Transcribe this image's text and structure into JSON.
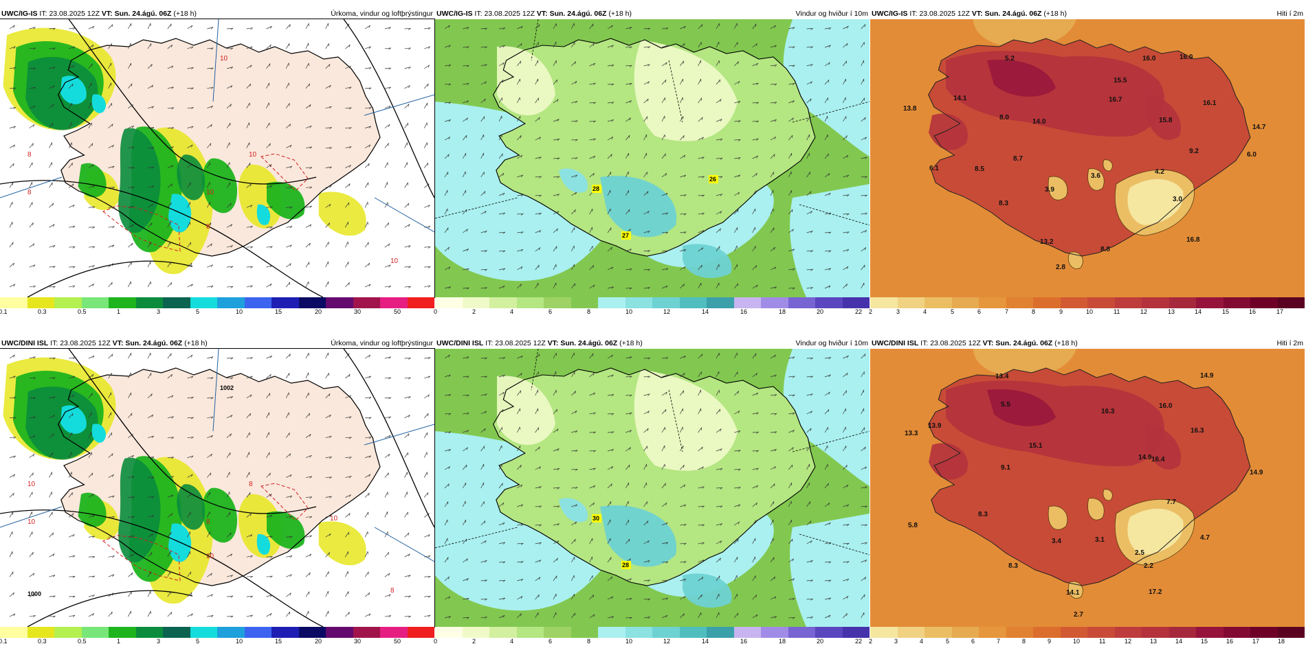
{
  "panels": [
    {
      "model": "UWC/IG-IS",
      "it_label": "IT:",
      "it": "23.08.2025 12Z",
      "vt_label": "VT:",
      "vt": "Sun. 24.ágú. 06Z",
      "lead": "(+18 h)",
      "title": "Úrkoma, vindur og loftþrýstingur",
      "field": "precip",
      "colors": [
        "#ffffa0",
        "#e6e61e",
        "#b4f050",
        "#78e678",
        "#1eb41e",
        "#0a8c3c",
        "#0a6450",
        "#14dcdc",
        "#1ea0dc",
        "#3c64f0",
        "#1e1eb4",
        "#0a0a64",
        "#640a6e",
        "#a0144b",
        "#e61e82",
        "#f01e1e"
      ],
      "ticks": [
        "0.1",
        "0.3",
        "0.5",
        "1",
        "3",
        "5",
        "10",
        "15",
        "20",
        "30",
        "50"
      ],
      "map_labels": [
        {
          "t": "10"
        },
        {
          "t": "8"
        },
        {
          "t": "10"
        },
        {
          "t": "8"
        },
        {
          "t": "10"
        },
        {
          "t": "8"
        },
        {
          "t": "10"
        }
      ],
      "highlights": []
    },
    {
      "model": "UWC/IG-IS",
      "it_label": "IT:",
      "it": "23.08.2025 12Z",
      "vt_label": "VT:",
      "vt": "Sun. 24.ágú. 06Z",
      "lead": "(+18 h)",
      "title": "Vindur og hviður í 10m",
      "field": "wind",
      "colors": [
        "#ffffe6",
        "#f0fac8",
        "#d2f0a0",
        "#b4e682",
        "#9ed264",
        "#82c850",
        "#aaf0f0",
        "#8ce1e1",
        "#6ed2d2",
        "#50bebe",
        "#3ca0aa",
        "#c8b4f0",
        "#a08ce6",
        "#7864d2",
        "#5a46be",
        "#4632aa"
      ],
      "ticks": [
        "0",
        "2",
        "4",
        "6",
        "8",
        "10",
        "12",
        "14",
        "16",
        "18",
        "20",
        "22"
      ],
      "map_labels": [],
      "highlights": [
        "28",
        "27",
        "26"
      ]
    },
    {
      "model": "UWC/IG-IS",
      "it_label": "IT:",
      "it": "23.08.2025 12Z",
      "vt_label": "VT:",
      "vt": "Sun. 24.ágú. 06Z",
      "lead": "(+18 h)",
      "title": "Hiti í 2m",
      "field": "temp",
      "colors": [
        "#f5e6a0",
        "#f0d282",
        "#ebbe64",
        "#e6aa50",
        "#e6963c",
        "#e08232",
        "#dc6e2d",
        "#d25a32",
        "#c84b37",
        "#be3c3c",
        "#b4323c",
        "#a5283c",
        "#96143c",
        "#820a32",
        "#6e0028",
        "#5a0020"
      ],
      "ticks": [
        "2",
        "3",
        "4",
        "5",
        "6",
        "7",
        "8",
        "9",
        "10",
        "11",
        "12",
        "13",
        "14",
        "15",
        "16",
        "17"
      ],
      "map_labels": [
        {
          "t": "5.2"
        },
        {
          "t": "16.0"
        },
        {
          "t": "16.0"
        },
        {
          "t": "15.5"
        },
        {
          "t": "13.8"
        },
        {
          "t": "14.1"
        },
        {
          "t": "16.7"
        },
        {
          "t": "8.0"
        },
        {
          "t": "14.0"
        },
        {
          "t": "15.8"
        },
        {
          "t": "16.1"
        },
        {
          "t": "14.7"
        },
        {
          "t": "8.5"
        },
        {
          "t": "8.7"
        },
        {
          "t": "9.2"
        },
        {
          "t": "6.0"
        },
        {
          "t": "6.1"
        },
        {
          "t": "3.9"
        },
        {
          "t": "3.6"
        },
        {
          "t": "4.2"
        },
        {
          "t": "8.3"
        },
        {
          "t": "3.0"
        },
        {
          "t": "13.2"
        },
        {
          "t": "8.8"
        },
        {
          "t": "16.8"
        },
        {
          "t": "2.8"
        }
      ],
      "highlights": []
    },
    {
      "model": "UWC/DINI ISL",
      "it_label": "IT:",
      "it": "23.08.2025 12Z",
      "vt_label": "VT:",
      "vt": "Sun. 24.ágú. 06Z",
      "lead": "(+18 h)",
      "title": "Úrkoma, vindur og loftþrýstingur",
      "field": "precip",
      "colors": [
        "#ffffa0",
        "#e6e61e",
        "#b4f050",
        "#78e678",
        "#1eb41e",
        "#0a8c3c",
        "#0a6450",
        "#14dcdc",
        "#1ea0dc",
        "#3c64f0",
        "#1e1eb4",
        "#0a0a64",
        "#640a6e",
        "#a0144b",
        "#e61e82",
        "#f01e1e"
      ],
      "ticks": [
        "0.1",
        "0.3",
        "0.5",
        "1",
        "3",
        "5",
        "10",
        "15",
        "20",
        "30",
        "50"
      ],
      "map_labels": [
        {
          "t": "1002"
        },
        {
          "t": "10"
        },
        {
          "t": "8"
        },
        {
          "t": "10"
        },
        {
          "t": "8"
        },
        {
          "t": "10"
        },
        {
          "t": "8"
        },
        {
          "t": "1000"
        },
        {
          "t": "10"
        }
      ],
      "highlights": []
    },
    {
      "model": "UWC/DINI ISL",
      "it_label": "IT:",
      "it": "23.08.2025 12Z",
      "vt_label": "VT:",
      "vt": "Sun. 24.ágú. 06Z",
      "lead": "(+18 h)",
      "title": "Vindur og hviður í 10m",
      "field": "wind",
      "colors": [
        "#ffffe6",
        "#f0fac8",
        "#d2f0a0",
        "#b4e682",
        "#9ed264",
        "#82c850",
        "#aaf0f0",
        "#8ce1e1",
        "#6ed2d2",
        "#50bebe",
        "#3ca0aa",
        "#c8b4f0",
        "#a08ce6",
        "#7864d2",
        "#5a46be",
        "#4632aa"
      ],
      "ticks": [
        "0",
        "2",
        "4",
        "6",
        "8",
        "10",
        "12",
        "14",
        "16",
        "18",
        "20",
        "22"
      ],
      "map_labels": [],
      "highlights": [
        "30",
        "28"
      ]
    },
    {
      "model": "UWC/DINI ISL",
      "it_label": "IT:",
      "it": "23.08.2025 12Z",
      "vt_label": "VT:",
      "vt": "Sun. 24.ágú. 06Z",
      "lead": "(+18 h)",
      "title": "Hiti í 2m",
      "field": "temp",
      "colors": [
        "#f5e6a0",
        "#f0d282",
        "#ebbe64",
        "#e6aa50",
        "#e6963c",
        "#e08232",
        "#dc6e2d",
        "#d25a32",
        "#c84b37",
        "#be3c3c",
        "#b4323c",
        "#a5283c",
        "#96143c",
        "#820a32",
        "#6e0028",
        "#5a0020"
      ],
      "ticks": [
        "2",
        "3",
        "4",
        "5",
        "6",
        "7",
        "8",
        "9",
        "10",
        "11",
        "12",
        "13",
        "14",
        "15",
        "16",
        "17",
        "18"
      ],
      "map_labels": [
        {
          "t": "13.4"
        },
        {
          "t": "14.9"
        },
        {
          "t": "5.5"
        },
        {
          "t": "16.3"
        },
        {
          "t": "16.0"
        },
        {
          "t": "13.3"
        },
        {
          "t": "13.9"
        },
        {
          "t": "16.3"
        },
        {
          "t": "15.1"
        },
        {
          "t": "16.4"
        },
        {
          "t": "9.1"
        },
        {
          "t": "14.9"
        },
        {
          "t": "14.9"
        },
        {
          "t": "7.7"
        },
        {
          "t": "8.3"
        },
        {
          "t": "5.8"
        },
        {
          "t": "3.4"
        },
        {
          "t": "3.1"
        },
        {
          "t": "4.7"
        },
        {
          "t": "2.5"
        },
        {
          "t": "8.3"
        },
        {
          "t": "2.2"
        },
        {
          "t": "14.1"
        },
        {
          "t": "17.2"
        },
        {
          "t": "2.7"
        }
      ],
      "highlights": []
    }
  ]
}
